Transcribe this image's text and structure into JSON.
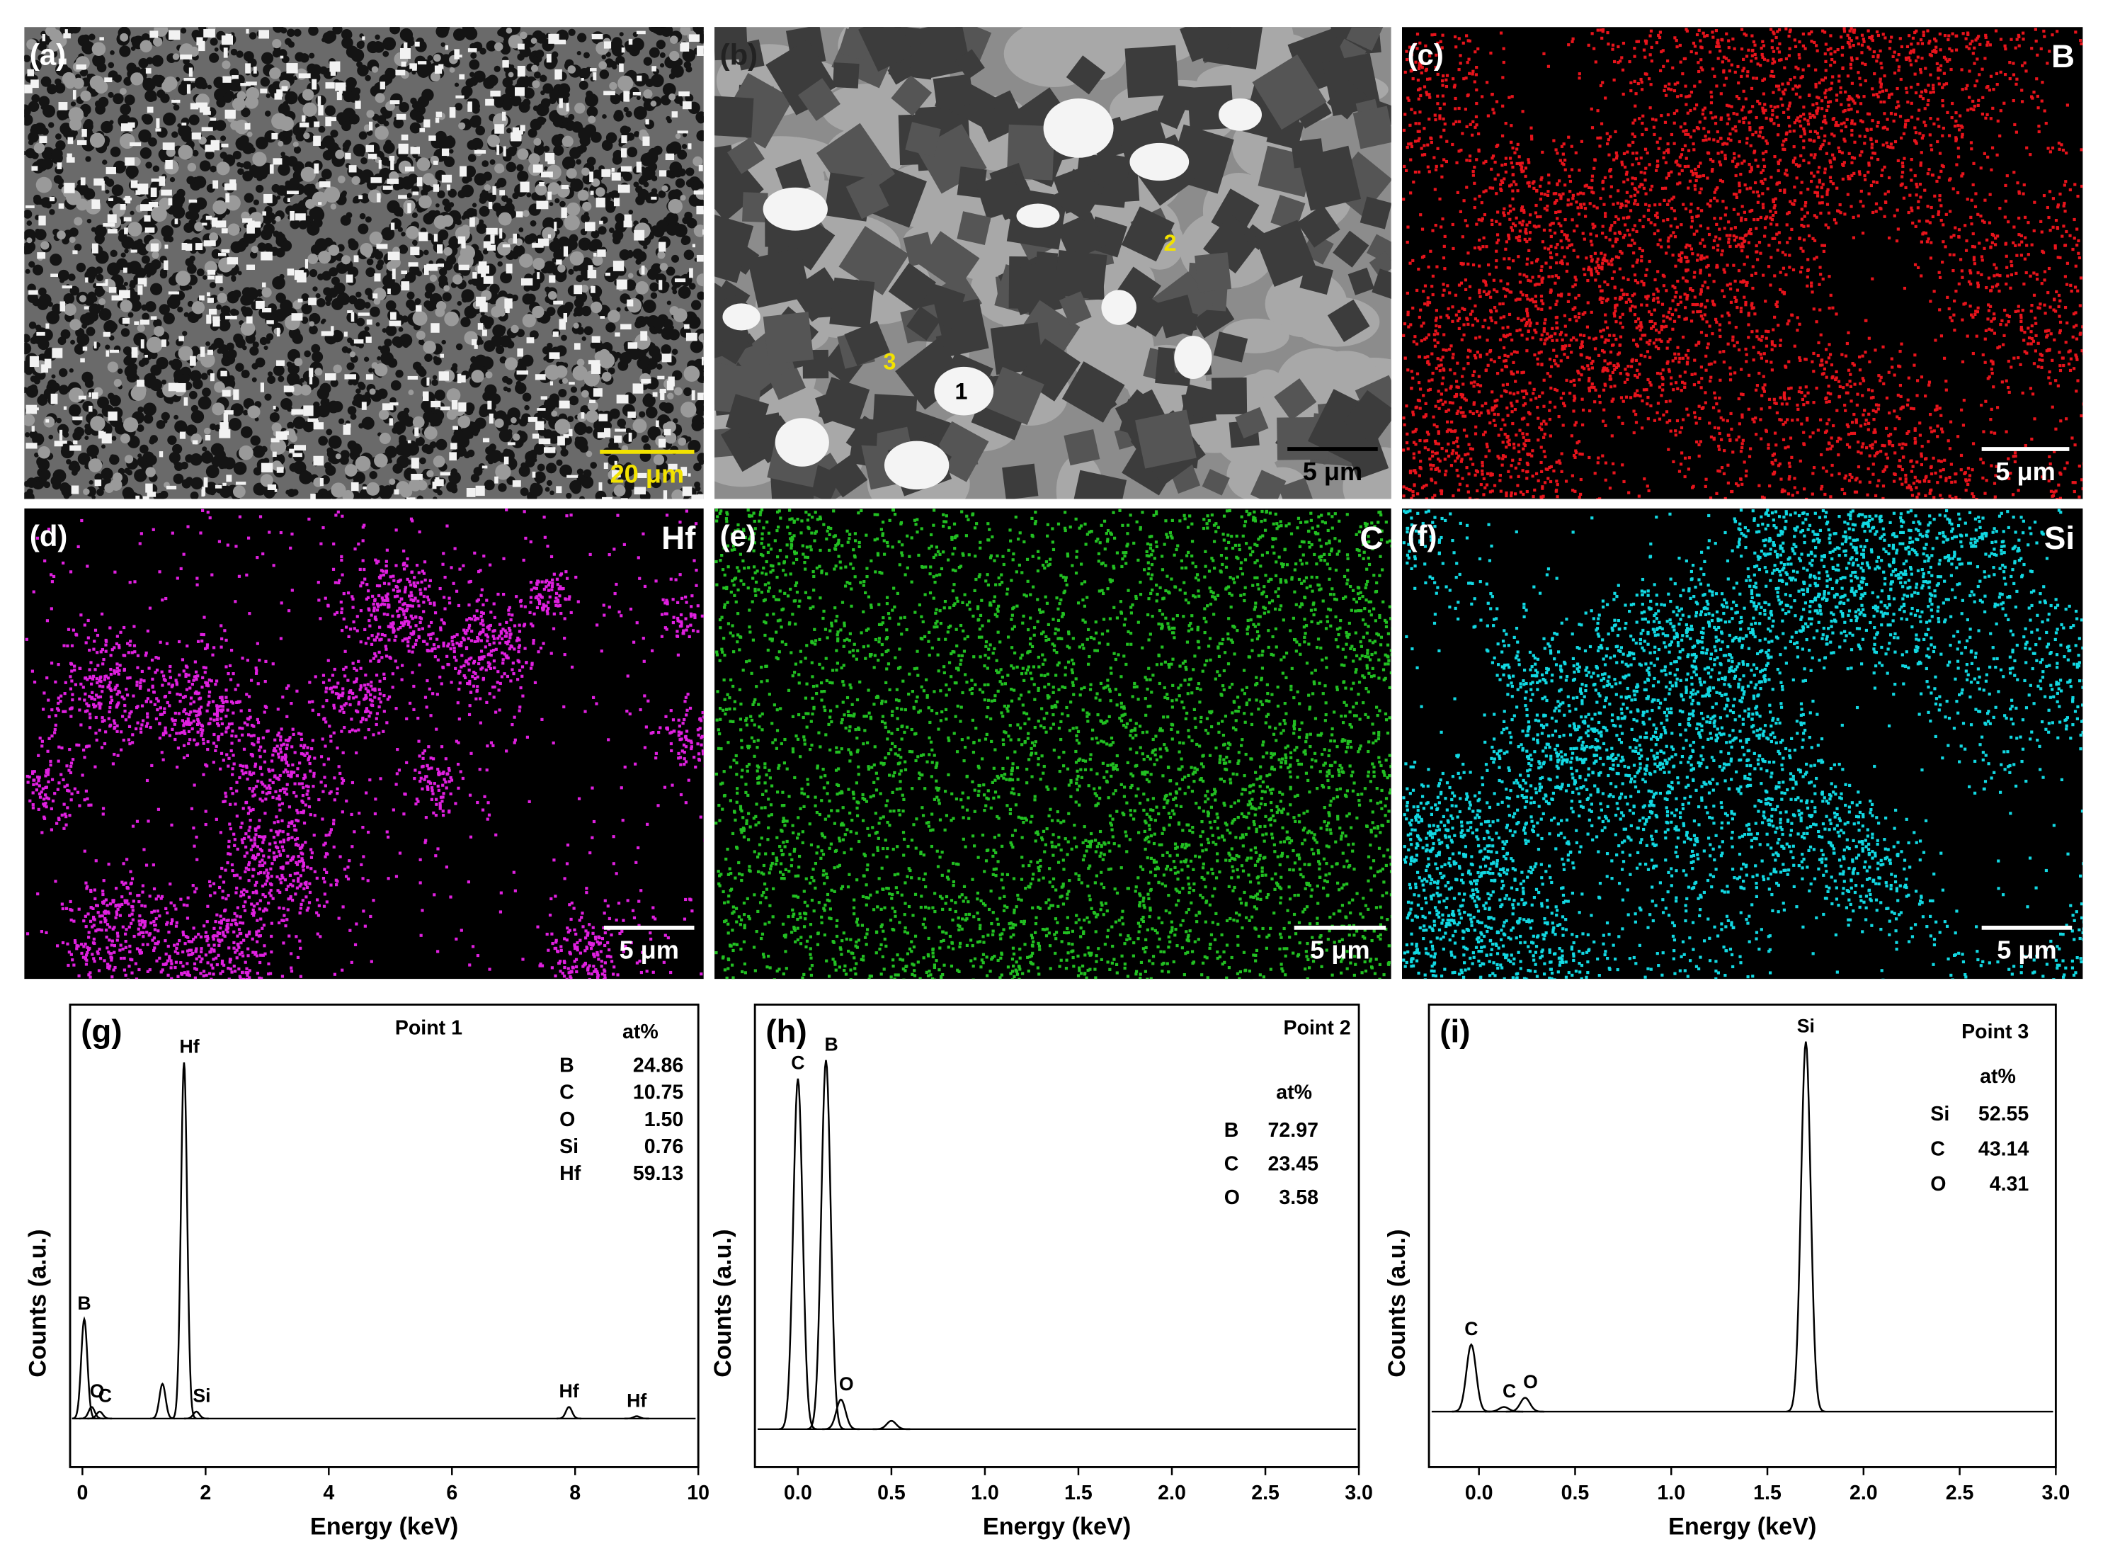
{
  "panels": [
    {
      "label": "(a)",
      "scale_bar": "20 μm"
    },
    {
      "label": "(b)",
      "scale_bar": "5 μm",
      "points": [
        "1",
        "2",
        "3"
      ]
    },
    {
      "label": "(c)",
      "element": "B",
      "scale_bar": "5 μm",
      "color": "#e8141c"
    },
    {
      "label": "(d)",
      "element": "Hf",
      "scale_bar": "5 μm",
      "color": "#e020e0"
    },
    {
      "label": "(e)",
      "element": "C",
      "scale_bar": "5 μm",
      "color": "#22c022"
    },
    {
      "label": "(f)",
      "element": "Si",
      "scale_bar": "5 μm",
      "color": "#12d8e2"
    }
  ],
  "chart_data": [
    {
      "type": "line",
      "label": "(g)",
      "title": "Point 1",
      "x_label": "Energy (keV)",
      "y_label": "Counts (a.u.)",
      "xlim": [
        -0.2,
        10
      ],
      "xticks": [
        0,
        2,
        4,
        6,
        8,
        10
      ],
      "ylim": [
        0,
        100
      ],
      "baseline": 10.5,
      "width": 0.05,
      "peaks": [
        {
          "label": "B",
          "x": 0.03,
          "height": 32
        },
        {
          "label": "O",
          "x": 0.15,
          "height": 13
        },
        {
          "label": "C",
          "x": 0.28,
          "height": 12
        },
        {
          "label": null,
          "x": 1.3,
          "height": 18
        },
        {
          "label": "Hf",
          "x": 1.65,
          "height": 87.5
        },
        {
          "label": "Si",
          "x": 1.85,
          "height": 12
        },
        {
          "label": "Hf",
          "x": 7.9,
          "height": 13
        },
        {
          "label": "Hf",
          "x": 9.0,
          "height": 11
        }
      ],
      "composition": {
        "header": "at%",
        "rows": [
          [
            "B",
            "24.86"
          ],
          [
            "C",
            "10.75"
          ],
          [
            "O",
            "1.50"
          ],
          [
            "Si",
            "0.76"
          ],
          [
            "Hf",
            "59.13"
          ]
        ]
      }
    },
    {
      "type": "line",
      "label": "(h)",
      "title": "Point 2",
      "x_label": "Energy (keV)",
      "y_label": "Counts (a.u.)",
      "xlim": [
        -0.23,
        3
      ],
      "xticks": [
        {
          "value": 0,
          "label": "0.0"
        },
        0.5,
        {
          "value": 1,
          "label": "1.0"
        },
        1.5,
        {
          "value": 2,
          "label": "2.0"
        },
        2.5,
        {
          "value": 3,
          "label": "3.0"
        }
      ],
      "ylim": [
        0,
        100
      ],
      "baseline": 8.2,
      "width": 0.025,
      "peaks": [
        {
          "label": "C",
          "x": 0.0,
          "height": 84
        },
        {
          "label": "B",
          "x": 0.15,
          "height": 88
        },
        {
          "label": "O",
          "x": 0.23,
          "height": 14.6
        },
        {
          "label": null,
          "x": 0.5,
          "height": 10
        }
      ],
      "composition": {
        "header": "at%",
        "rows": [
          [
            "B",
            "72.97"
          ],
          [
            "C",
            "23.45"
          ],
          [
            "O",
            "3.58"
          ]
        ]
      }
    },
    {
      "type": "line",
      "label": "(i)",
      "title": "Point 3",
      "x_label": "Energy (keV)",
      "y_label": "Counts (a.u.)",
      "xlim": [
        -0.26,
        3
      ],
      "xticks": [
        {
          "value": 0,
          "label": "0.0"
        },
        0.5,
        {
          "value": 1,
          "label": "1.0"
        },
        1.5,
        {
          "value": 2,
          "label": "2.0"
        },
        2.5,
        {
          "value": 3,
          "label": "3.0"
        }
      ],
      "ylim": [
        0,
        100
      ],
      "baseline": 12,
      "width": 0.025,
      "peaks": [
        {
          "label": "C",
          "x": -0.04,
          "height": 26.5
        },
        {
          "label": "C",
          "x": 0.13,
          "height": 13
        },
        {
          "label": "O",
          "x": 0.24,
          "height": 15
        },
        {
          "label": "Si",
          "x": 1.7,
          "height": 92
        }
      ],
      "composition": {
        "header": "at%",
        "rows": [
          [
            "Si",
            "52.55"
          ],
          [
            "C",
            "43.14"
          ],
          [
            "O",
            "4.31"
          ]
        ]
      }
    }
  ]
}
